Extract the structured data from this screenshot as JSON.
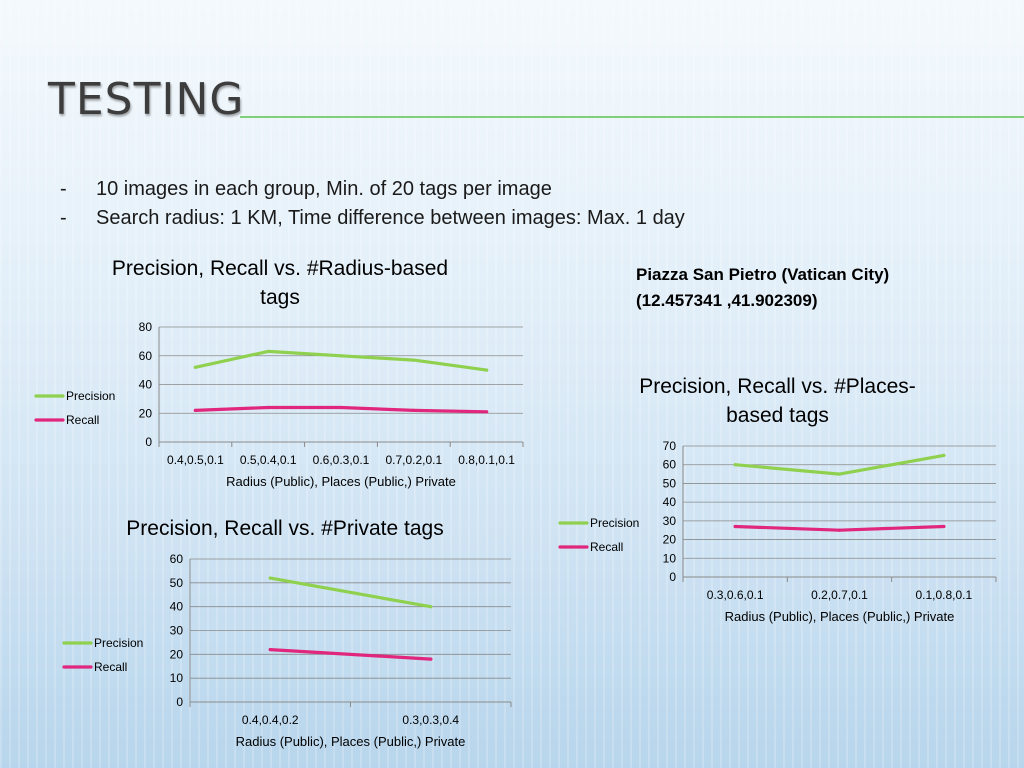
{
  "slide": {
    "title": "Testing",
    "bullets": [
      "10 images in each group, Min. of 20 tags per image",
      "Search radius: 1 KM, Time difference between images: Max. 1 day"
    ],
    "bullet_marker": "-",
    "location_name": "Piazza San Pietro (Vatican City)",
    "location_coords": "(12.457341 ,41.902309)",
    "accent_color": "#7fd07a"
  },
  "chart_data": [
    {
      "type": "line",
      "title": "Precision, Recall vs. #Radius-based tags",
      "title_lines": [
        "Precision, Recall vs. #Radius-based",
        "tags"
      ],
      "xlabel": "Radius (Public), Places (Public,) Private",
      "ylabel": "",
      "categories": [
        "0.4,0.5,0.1",
        "0.5,0.4,0.1",
        "0.6,0.3,0.1",
        "0.7,0.2,0.1",
        "0.8,0.1,0.1"
      ],
      "ylim": [
        0,
        80
      ],
      "yticks": [
        0,
        20,
        40,
        60,
        80
      ],
      "grid": true,
      "legend": "left",
      "series": [
        {
          "name": "Precision",
          "color": "#8fd14f",
          "values": [
            52,
            63,
            60,
            57,
            50
          ]
        },
        {
          "name": "Recall",
          "color": "#e0267d",
          "values": [
            22,
            24,
            24,
            22,
            21
          ]
        }
      ]
    },
    {
      "type": "line",
      "title": "Precision, Recall vs. #Places-based tags",
      "title_lines": [
        "Precision, Recall vs. #Places-",
        "based tags"
      ],
      "xlabel": "Radius (Public), Places (Public,) Private",
      "ylabel": "",
      "categories": [
        "0.3,0.6,0.1",
        "0.2,0.7,0.1",
        "0.1,0.8,0.1"
      ],
      "ylim": [
        0,
        70
      ],
      "yticks": [
        0,
        10,
        20,
        30,
        40,
        50,
        60,
        70
      ],
      "grid": true,
      "legend": "left",
      "series": [
        {
          "name": "Precision",
          "color": "#8fd14f",
          "values": [
            60,
            55,
            65
          ]
        },
        {
          "name": "Recall",
          "color": "#e0267d",
          "values": [
            27,
            25,
            27
          ]
        }
      ]
    },
    {
      "type": "line",
      "title": "Precision, Recall vs. #Private tags",
      "title_lines": [
        "Precision, Recall vs. #Private tags"
      ],
      "xlabel": "Radius (Public), Places (Public,) Private",
      "ylabel": "",
      "categories": [
        "0.4,0.4,0.2",
        "0.3,0.3,0.4"
      ],
      "ylim": [
        0,
        60
      ],
      "yticks": [
        0,
        10,
        20,
        30,
        40,
        50,
        60
      ],
      "grid": true,
      "legend": "left",
      "series": [
        {
          "name": "Precision",
          "color": "#8fd14f",
          "values": [
            52,
            40
          ]
        },
        {
          "name": "Recall",
          "color": "#e0267d",
          "values": [
            22,
            18
          ]
        }
      ]
    }
  ]
}
